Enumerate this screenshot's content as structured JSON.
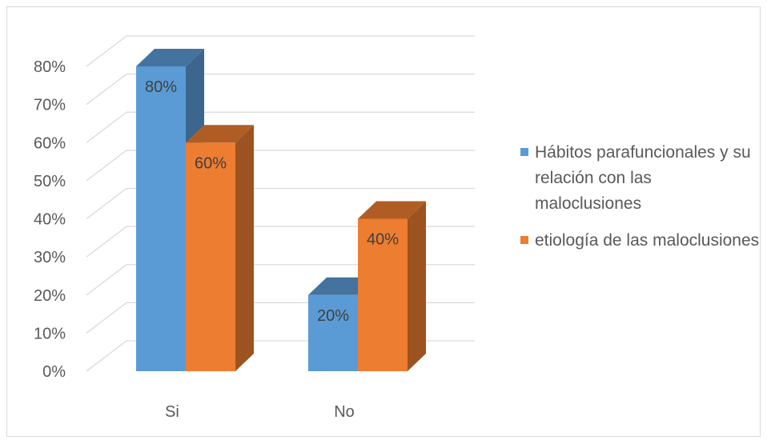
{
  "chart_data": {
    "type": "bar",
    "style": "3d-clustered-column",
    "categories": [
      "Si",
      "No"
    ],
    "series": [
      {
        "name": "Hábitos parafuncionales y su relación con las maloclusiones",
        "values": [
          80,
          20
        ],
        "data_labels": [
          "80%",
          "20%"
        ],
        "color": "#5b9bd5"
      },
      {
        "name": "etiología de las maloclusiones",
        "values": [
          60,
          40
        ],
        "data_labels": [
          "60%",
          "40%"
        ],
        "color": "#ed7d31"
      }
    ],
    "ylim": [
      0,
      80
    ],
    "y_ticks": [
      "0%",
      "10%",
      "20%",
      "30%",
      "40%",
      "50%",
      "60%",
      "70%",
      "80%"
    ],
    "grid": true,
    "legend_position": "right"
  }
}
